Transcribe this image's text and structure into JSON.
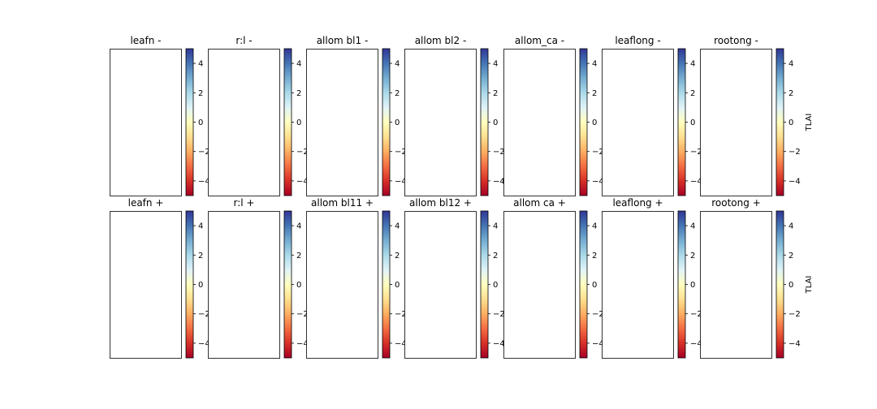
{
  "chart_data": {
    "type": "heatmap",
    "colormap": "RdYlBu",
    "colormap_stops": [
      "#a50026",
      "#d73027",
      "#f46d43",
      "#fdae61",
      "#fee090",
      "#ffffbf",
      "#e0f3f8",
      "#abd9e9",
      "#74add1",
      "#4575b4",
      "#313695"
    ],
    "clim": [
      -5,
      5
    ],
    "colorbar_ticks": [
      -4,
      -2,
      0,
      2,
      4
    ],
    "colorbar_label": "TLAI",
    "rows": [
      {
        "titles": [
          "leafn -",
          "r:l -",
          "allom bl1 -",
          "allom bl2 -",
          "allom_ca -",
          "leaflong -",
          "rootong -"
        ]
      },
      {
        "titles": [
          "leafn +",
          "r:l +",
          "allom bl11 +",
          "allom bl12 +",
          "allom ca +",
          "leaflong +",
          "rootong +"
        ]
      }
    ]
  }
}
